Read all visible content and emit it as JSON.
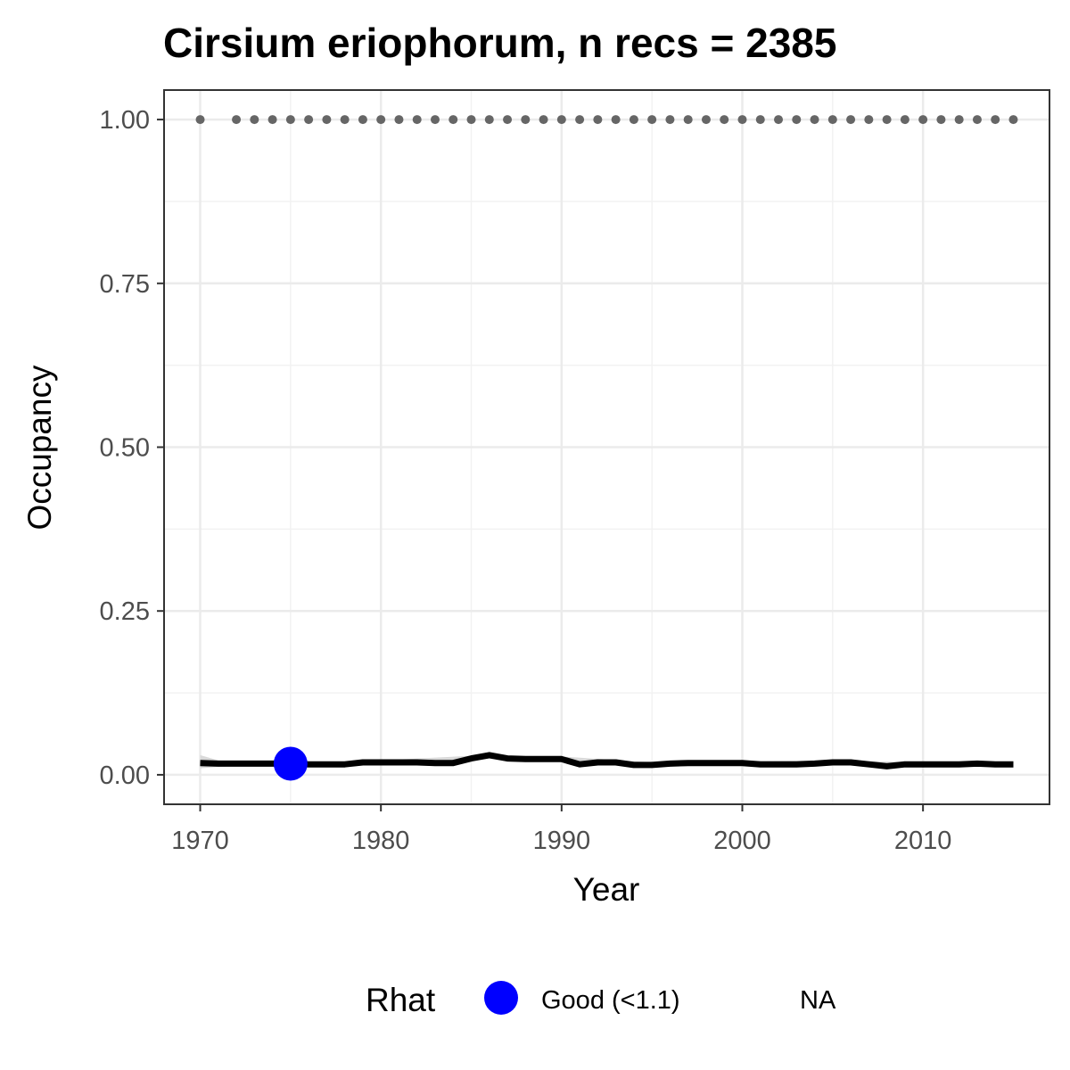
{
  "chart_data": {
    "type": "line",
    "title": "Cirsium eriophorum, n recs = 2385",
    "xlabel": "Year",
    "ylabel": "Occupancy",
    "xlim": [
      1968,
      2017
    ],
    "ylim": [
      -0.045,
      1.045
    ],
    "x_ticks": [
      1970,
      1980,
      1990,
      2000,
      2010
    ],
    "x_tick_labels": [
      "1970",
      "1980",
      "1990",
      "2000",
      "2010"
    ],
    "y_ticks": [
      0,
      0.25,
      0.5,
      0.75,
      1.0
    ],
    "y_tick_labels": [
      "0.00",
      "0.25",
      "0.50",
      "0.75",
      "1.00"
    ],
    "grid": true,
    "series": [
      {
        "role": "occupancy-mean",
        "color": "#000000",
        "x": [
          1970,
          1971,
          1972,
          1973,
          1974,
          1975,
          1976,
          1977,
          1978,
          1979,
          1980,
          1981,
          1982,
          1983,
          1984,
          1985,
          1986,
          1987,
          1988,
          1989,
          1990,
          1991,
          1992,
          1993,
          1994,
          1995,
          1996,
          1997,
          1998,
          1999,
          2000,
          2001,
          2002,
          2003,
          2004,
          2005,
          2006,
          2007,
          2008,
          2009,
          2010,
          2011,
          2012,
          2013,
          2014,
          2015
        ],
        "y": [
          0.018,
          0.017,
          0.017,
          0.017,
          0.017,
          0.017,
          0.016,
          0.016,
          0.016,
          0.019,
          0.019,
          0.019,
          0.019,
          0.018,
          0.018,
          0.025,
          0.03,
          0.025,
          0.024,
          0.024,
          0.024,
          0.016,
          0.019,
          0.019,
          0.015,
          0.015,
          0.017,
          0.018,
          0.018,
          0.018,
          0.018,
          0.016,
          0.016,
          0.016,
          0.017,
          0.019,
          0.019,
          0.016,
          0.013,
          0.016,
          0.016,
          0.016,
          0.016,
          0.017,
          0.016,
          0.016
        ]
      },
      {
        "role": "credible-interval",
        "color": "#d9d9d9",
        "x": [
          1970,
          1971,
          1972,
          1973,
          1974,
          1975,
          1976,
          1977,
          1978,
          1979,
          1980,
          1985,
          1986,
          1987,
          1990,
          1995,
          2000,
          2005,
          2010,
          2015
        ],
        "upper": [
          0.03,
          0.022,
          0.02,
          0.02,
          0.02,
          0.02,
          0.019,
          0.019,
          0.019,
          0.022,
          0.022,
          0.029,
          0.035,
          0.029,
          0.028,
          0.019,
          0.021,
          0.022,
          0.019,
          0.019
        ],
        "lower": [
          0.01,
          0.012,
          0.014,
          0.014,
          0.014,
          0.014,
          0.013,
          0.013,
          0.013,
          0.016,
          0.016,
          0.021,
          0.025,
          0.021,
          0.02,
          0.012,
          0.015,
          0.016,
          0.013,
          0.013
        ]
      },
      {
        "role": "data-years",
        "color": "#666666",
        "x": [
          1970,
          1972,
          1973,
          1974,
          1975,
          1976,
          1977,
          1978,
          1979,
          1980,
          1981,
          1982,
          1983,
          1984,
          1985,
          1986,
          1987,
          1988,
          1989,
          1990,
          1991,
          1992,
          1993,
          1994,
          1995,
          1996,
          1997,
          1998,
          1999,
          2000,
          2001,
          2002,
          2003,
          2004,
          2005,
          2006,
          2007,
          2008,
          2009,
          2010,
          2011,
          2012,
          2013,
          2014,
          2015
        ],
        "y": 1.0
      }
    ],
    "rhat_points": [
      {
        "x": 1975,
        "y": 0.017,
        "category": "Good (<1.1)",
        "color": "#0000ff"
      }
    ],
    "legend": {
      "placement": "bottom",
      "title": "Rhat",
      "entries": [
        {
          "label": "Good (<1.1)",
          "color": "#0000ff"
        },
        {
          "label": "NA",
          "color": ""
        }
      ]
    }
  }
}
